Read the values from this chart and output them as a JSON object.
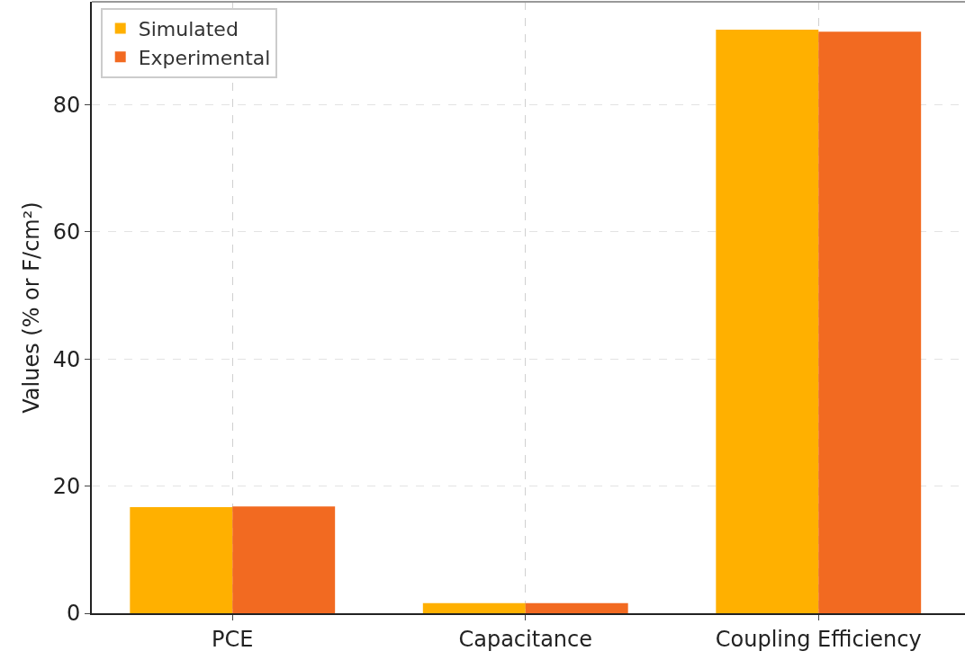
{
  "chart_data": {
    "type": "bar",
    "ylabel": "Values (% or F/cm²)",
    "categories": [
      "PCE",
      "Capacitance",
      "Coupling Efficiency"
    ],
    "series": [
      {
        "name": "Simulated",
        "color": "#ffb000",
        "values": [
          16.7,
          1.6,
          91.8
        ]
      },
      {
        "name": "Experimental",
        "color": "#f26a21",
        "values": [
          16.8,
          1.6,
          91.5
        ]
      }
    ],
    "ylim": [
      0,
      96.2
    ],
    "yticks": [
      0,
      20,
      40,
      60,
      80
    ],
    "grid": true,
    "legend": "top left"
  }
}
